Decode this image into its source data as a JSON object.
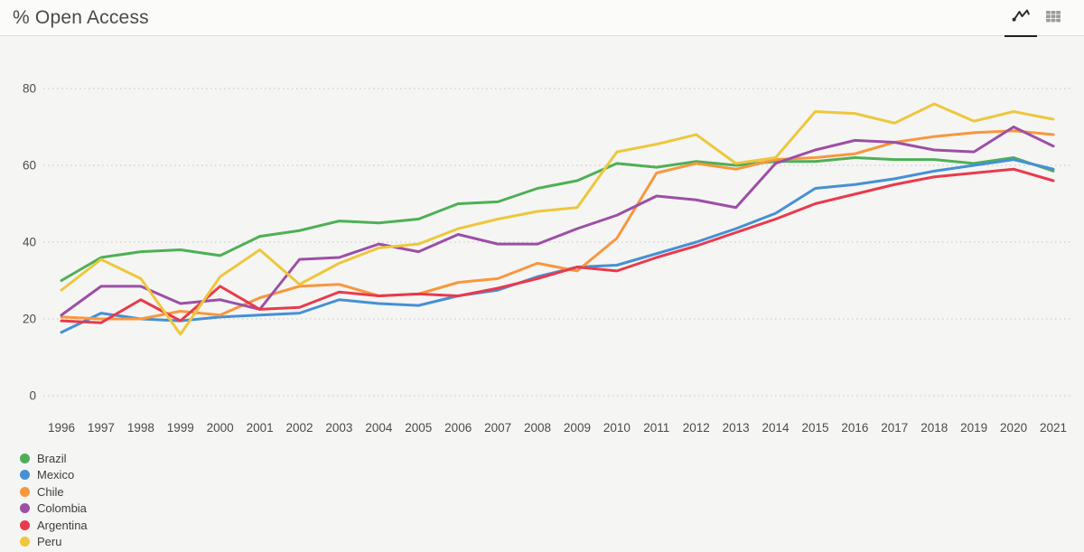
{
  "header": {
    "title": "% Open Access",
    "view_toggle": {
      "active_view": "chart",
      "chart_button": "line-chart view",
      "table_button": "table view"
    }
  },
  "colors": {
    "background": "#f5f5f3",
    "header_background": "#fbfbfa",
    "header_border": "#dcdcdc",
    "grid": "#d7d7d5",
    "axis_text": "#4c4c4c",
    "active_tab_underline": "#1f1f1f",
    "inactive_icon": "#9c9c9c",
    "active_icon": "#2b2b2b"
  },
  "chart_data": {
    "type": "line",
    "title": "% Open Access",
    "xlabel": "",
    "ylabel": "",
    "ylim": [
      0,
      80
    ],
    "yticks": [
      0,
      20,
      40,
      60,
      80
    ],
    "grid": "horizontal-dotted",
    "legend_position": "bottom-left",
    "x": [
      1996,
      1997,
      1998,
      1999,
      2000,
      2001,
      2002,
      2003,
      2004,
      2005,
      2006,
      2007,
      2008,
      2009,
      2010,
      2011,
      2012,
      2013,
      2014,
      2015,
      2016,
      2017,
      2018,
      2019,
      2020,
      2021
    ],
    "series": [
      {
        "name": "Brazil",
        "color": "#4db056",
        "values": [
          30,
          36,
          37.5,
          38,
          36.5,
          41.5,
          43,
          45.5,
          45,
          46,
          50,
          50.5,
          54,
          56,
          60.5,
          59.5,
          61,
          60,
          61,
          61,
          62,
          61.5,
          61.5,
          60.5,
          62,
          58.5
        ]
      },
      {
        "name": "Mexico",
        "color": "#4690d4",
        "values": [
          16.5,
          21.5,
          20,
          19.5,
          20.5,
          21,
          21.5,
          25,
          24,
          23.5,
          26,
          27.5,
          31,
          33.5,
          34,
          37,
          40,
          43.5,
          47.5,
          54,
          55,
          56.5,
          58.5,
          60,
          61.5,
          59
        ]
      },
      {
        "name": "Chile",
        "color": "#f8973e",
        "values": [
          20.5,
          20,
          20,
          22,
          21,
          25.5,
          28.5,
          29,
          26,
          26.5,
          29.5,
          30.5,
          34.5,
          32.5,
          41,
          58,
          60.5,
          59,
          61.5,
          62,
          63,
          66,
          67.5,
          68.5,
          69,
          68
        ]
      },
      {
        "name": "Colombia",
        "color": "#9c4fa5",
        "values": [
          21,
          28.5,
          28.5,
          24,
          25,
          22.5,
          35.5,
          36,
          39.5,
          37.5,
          42,
          39.5,
          39.5,
          43.5,
          47,
          52,
          51,
          49,
          60.5,
          64,
          66.5,
          66,
          64,
          63.5,
          70,
          65
        ]
      },
      {
        "name": "Argentina",
        "color": "#e93a4d",
        "values": [
          19.5,
          19,
          25,
          19.5,
          28.5,
          22.5,
          23,
          27,
          26,
          26.5,
          26,
          28,
          30.5,
          33.5,
          32.5,
          36,
          39,
          42.5,
          46,
          50,
          52.5,
          55,
          57,
          58,
          59,
          56
        ]
      },
      {
        "name": "Peru",
        "color": "#edc73d",
        "values": [
          27.5,
          35.5,
          30.5,
          16,
          31,
          38,
          29,
          34.5,
          38.5,
          39.5,
          43.5,
          46,
          48,
          49,
          63.5,
          65.5,
          68,
          60.5,
          62,
          74,
          73.5,
          71,
          76,
          71.5,
          74,
          72
        ]
      }
    ]
  }
}
